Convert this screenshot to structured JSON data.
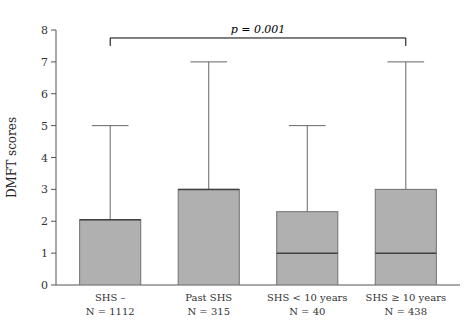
{
  "chart_data": {
    "type": "box",
    "ylabel": "DMFT scores",
    "categories": [
      "SHS –\nN = 1112",
      "Past SHS\nN = 315",
      "SHS < 10 years\nN = 40",
      "SHS ≥ 10 years\nN = 438"
    ],
    "boxes": [
      {
        "whislo": 0,
        "q1": 0,
        "med": 2.05,
        "q3": 2.05,
        "whishi": 5.0
      },
      {
        "whislo": 0,
        "q1": 0,
        "med": 3.0,
        "q3": 3.0,
        "whishi": 7.0
      },
      {
        "whislo": 0,
        "q1": 0,
        "med": 1.0,
        "q3": 2.3,
        "whishi": 5.0
      },
      {
        "whislo": 0,
        "q1": 0,
        "med": 1.0,
        "q3": 3.0,
        "whishi": 7.0
      }
    ],
    "color": "#b0b0b0",
    "annotations": [
      {
        "text": "p = 0.001",
        "y": 7.75
      }
    ],
    "ylim": [
      0,
      8
    ],
    "yticks": [
      0,
      1,
      2,
      3,
      4,
      5,
      6,
      7,
      8
    ],
    "grid": false
  }
}
